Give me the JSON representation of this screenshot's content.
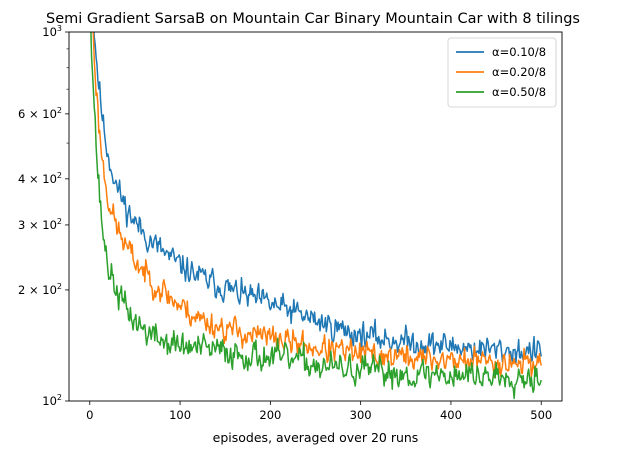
{
  "chart_data": {
    "type": "line",
    "title": "Semi Gradient SarsaB on Mountain Car Binary Mountain Car with 8 tilings",
    "xlabel": "episodes, averaged over 20 runs",
    "ylabel": "",
    "xlim": [
      -23,
      523
    ],
    "ylim": [
      100,
      1000
    ],
    "yscale": "log",
    "x_ticks": [
      0,
      100,
      200,
      300,
      400,
      500
    ],
    "x_tick_labels": [
      "0",
      "100",
      "200",
      "300",
      "400",
      "500"
    ],
    "y_ticks": [
      100,
      200,
      300,
      400,
      600,
      1000
    ],
    "y_tick_labels": [
      {
        "base": "10",
        "exp": "2",
        "coef": ""
      },
      {
        "base": "10",
        "exp": "2",
        "coef": "2 × "
      },
      {
        "base": "10",
        "exp": "2",
        "coef": "3 × "
      },
      {
        "base": "10",
        "exp": "2",
        "coef": "4 × "
      },
      {
        "base": "10",
        "exp": "2",
        "coef": "6 × "
      },
      {
        "base": "10",
        "exp": "3",
        "coef": ""
      }
    ],
    "grid": false,
    "legend_position": "top-right",
    "series": [
      {
        "name": "α=0.10/8",
        "color": "#1f77b4",
        "noise": 0.055,
        "seed": 11,
        "anchors": [
          [
            1,
            1400
          ],
          [
            5,
            1000
          ],
          [
            10,
            720
          ],
          [
            15,
            560
          ],
          [
            20,
            470
          ],
          [
            25,
            420
          ],
          [
            30,
            380
          ],
          [
            40,
            335
          ],
          [
            50,
            305
          ],
          [
            60,
            285
          ],
          [
            70,
            268
          ],
          [
            80,
            255
          ],
          [
            90,
            243
          ],
          [
            100,
            233
          ],
          [
            120,
            218
          ],
          [
            140,
            207
          ],
          [
            160,
            198
          ],
          [
            180,
            190
          ],
          [
            200,
            183
          ],
          [
            220,
            176
          ],
          [
            240,
            169
          ],
          [
            260,
            162
          ],
          [
            280,
            156
          ],
          [
            300,
            151
          ],
          [
            320,
            148
          ],
          [
            340,
            146
          ],
          [
            360,
            144
          ],
          [
            380,
            142
          ],
          [
            400,
            141
          ],
          [
            420,
            139
          ],
          [
            440,
            138
          ],
          [
            460,
            137
          ],
          [
            480,
            136
          ],
          [
            500,
            136
          ]
        ]
      },
      {
        "name": "α=0.20/8",
        "color": "#ff7f0e",
        "noise": 0.055,
        "seed": 23,
        "anchors": [
          [
            1,
            1400
          ],
          [
            5,
            860
          ],
          [
            10,
            560
          ],
          [
            15,
            430
          ],
          [
            20,
            360
          ],
          [
            25,
            320
          ],
          [
            30,
            295
          ],
          [
            40,
            262
          ],
          [
            50,
            240
          ],
          [
            60,
            224
          ],
          [
            70,
            211
          ],
          [
            80,
            200
          ],
          [
            90,
            190
          ],
          [
            100,
            181
          ],
          [
            120,
            168
          ],
          [
            140,
            160
          ],
          [
            160,
            155
          ],
          [
            180,
            151
          ],
          [
            200,
            148
          ],
          [
            220,
            145
          ],
          [
            240,
            141
          ],
          [
            260,
            138
          ],
          [
            280,
            136
          ],
          [
            300,
            134
          ],
          [
            320,
            133
          ],
          [
            340,
            132
          ],
          [
            360,
            131
          ],
          [
            380,
            130
          ],
          [
            400,
            129
          ],
          [
            420,
            129
          ],
          [
            440,
            128
          ],
          [
            460,
            128
          ],
          [
            480,
            127
          ],
          [
            500,
            127
          ]
        ]
      },
      {
        "name": "α=0.50/8",
        "color": "#2ca02c",
        "noise": 0.06,
        "seed": 37,
        "anchors": [
          [
            1,
            1100
          ],
          [
            4,
            720
          ],
          [
            8,
            450
          ],
          [
            12,
            330
          ],
          [
            16,
            270
          ],
          [
            20,
            235
          ],
          [
            25,
            212
          ],
          [
            30,
            198
          ],
          [
            40,
            178
          ],
          [
            50,
            165
          ],
          [
            60,
            156
          ],
          [
            70,
            150
          ],
          [
            80,
            146
          ],
          [
            90,
            143
          ],
          [
            100,
            141
          ],
          [
            120,
            139
          ],
          [
            140,
            137
          ],
          [
            160,
            135
          ],
          [
            180,
            133
          ],
          [
            200,
            131
          ],
          [
            220,
            130
          ],
          [
            240,
            127
          ],
          [
            260,
            124
          ],
          [
            280,
            122
          ],
          [
            300,
            121
          ],
          [
            320,
            120
          ],
          [
            340,
            119
          ],
          [
            360,
            118
          ],
          [
            380,
            118
          ],
          [
            400,
            118
          ],
          [
            420,
            118
          ],
          [
            440,
            117
          ],
          [
            460,
            117
          ],
          [
            480,
            117
          ],
          [
            500,
            117
          ]
        ]
      }
    ]
  }
}
